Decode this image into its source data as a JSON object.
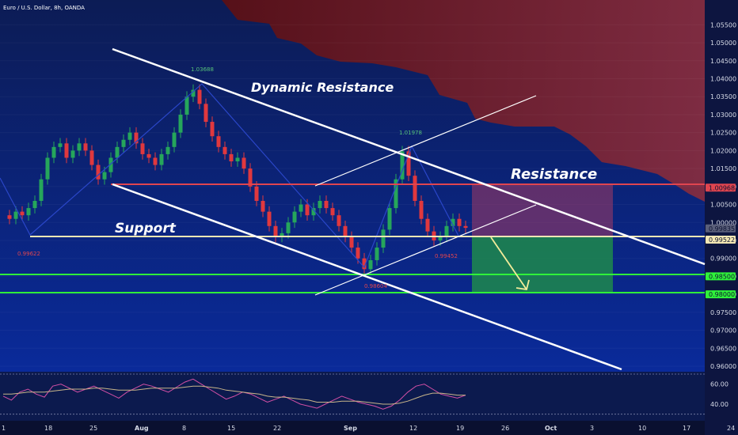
{
  "header": {
    "symbol_title": "Euro / U.S. Dollar, 8h, OANDA"
  },
  "colors": {
    "background_top": "#0c1c55",
    "background_bottom": "#0a2a9a",
    "cloud": "#7a1414",
    "bull": "#26a65b",
    "bear": "#e0383e",
    "trend": "#ffffff",
    "support": "#f3e7b4",
    "resistance": "#e0454f",
    "target_line": "#2ff23a",
    "zigzag": "#2a46c8",
    "rsi": "#d24fa5"
  },
  "annotations": {
    "dynamic_resistance": "Dynamic Resistance",
    "resistance": "Resistance",
    "support": "Support",
    "peak_high_1": "1.03688",
    "peak_high_2": "1.01978",
    "low_1": "0.99622",
    "low_2": "0.98604",
    "low_3": "0.99452"
  },
  "chart_data": [
    {
      "type": "candlestick",
      "title": "Euro / U.S. Dollar, 8h, OANDA",
      "ylim": [
        0.96,
        1.0575
      ],
      "y_ticks": [
        "1.05500",
        "1.05000",
        "1.04500",
        "1.04000",
        "1.03500",
        "1.03000",
        "1.02500",
        "1.02000",
        "1.01500",
        "1.01000",
        "1.00500",
        "1.00000",
        "0.99500",
        "0.99000",
        "0.98500",
        "0.98000",
        "0.97500",
        "0.97000",
        "0.96500",
        "0.96000"
      ],
      "x_ticks": [
        "1",
        "18",
        "25",
        "Aug",
        "8",
        "15",
        "22",
        "Sep",
        "12",
        "19",
        "26",
        "Oct",
        "3",
        "10",
        "17",
        "24"
      ],
      "price_tags": [
        {
          "value": 1.00968,
          "text": "1.00968",
          "color": "#e0454f"
        },
        {
          "value": 0.99835,
          "text": "0.99835",
          "color": "#5a5f7a"
        },
        {
          "value": 0.99522,
          "text": "0.99522",
          "color": "#f3e7b4"
        },
        {
          "value": 0.985,
          "text": "0.98500",
          "color": "#2ff23a"
        },
        {
          "value": 0.98,
          "text": "0.98000",
          "color": "#2ff23a"
        }
      ],
      "levels": {
        "resistance": 1.00968,
        "support": 0.9952,
        "target_1": 0.985,
        "target_2": 0.98
      },
      "price_path": [
        1.002,
        1.001,
        1.003,
        1.002,
        1.004,
        1.006,
        1.012,
        1.018,
        1.021,
        1.022,
        1.018,
        1.02,
        1.022,
        1.02,
        1.016,
        1.012,
        1.014,
        1.018,
        1.021,
        1.023,
        1.025,
        1.022,
        1.019,
        1.018,
        1.016,
        1.019,
        1.021,
        1.025,
        1.03,
        1.035,
        1.0369,
        1.033,
        1.028,
        1.024,
        1.021,
        1.019,
        1.017,
        1.018,
        1.015,
        1.01,
        1.006,
        1.003,
        0.999,
        0.996,
        0.997,
        1.0,
        1.003,
        1.005,
        1.002,
        1.004,
        1.006,
        1.004,
        1.002,
        0.999,
        0.996,
        0.993,
        0.99,
        0.987,
        0.9895,
        0.993,
        0.998,
        1.004,
        1.012,
        1.0198,
        1.013,
        1.006,
        1.001,
        0.9975,
        0.995,
        0.996,
        0.999,
        1.001,
        0.999,
        0.9985
      ]
    },
    {
      "type": "line",
      "title": "",
      "ylim": [
        25,
        70
      ],
      "y_ticks": [
        "60.00",
        "40.00"
      ],
      "series": [
        {
          "values": [
            48,
            44,
            52,
            55,
            50,
            47,
            58,
            60,
            56,
            52,
            55,
            58,
            54,
            50,
            46,
            52,
            56,
            60,
            58,
            55,
            52,
            57,
            62,
            65,
            60,
            55,
            50,
            45,
            48,
            52,
            50,
            46,
            42,
            45,
            48,
            44,
            40,
            38,
            36,
            40,
            44,
            48,
            45,
            42,
            40,
            38,
            35,
            38,
            44,
            52,
            58,
            60,
            55,
            50,
            48,
            46,
            49
          ]
        },
        {
          "values": [
            50,
            50,
            51,
            52,
            52,
            52,
            53,
            54,
            55,
            55,
            55,
            56,
            56,
            55,
            54,
            54,
            54,
            55,
            56,
            56,
            56,
            56,
            57,
            58,
            58,
            57,
            56,
            54,
            53,
            52,
            51,
            50,
            48,
            47,
            47,
            46,
            45,
            44,
            42,
            42,
            42,
            43,
            43,
            43,
            42,
            41,
            40,
            40,
            41,
            43,
            46,
            49,
            51,
            51,
            50,
            49,
            49
          ]
        }
      ]
    }
  ]
}
